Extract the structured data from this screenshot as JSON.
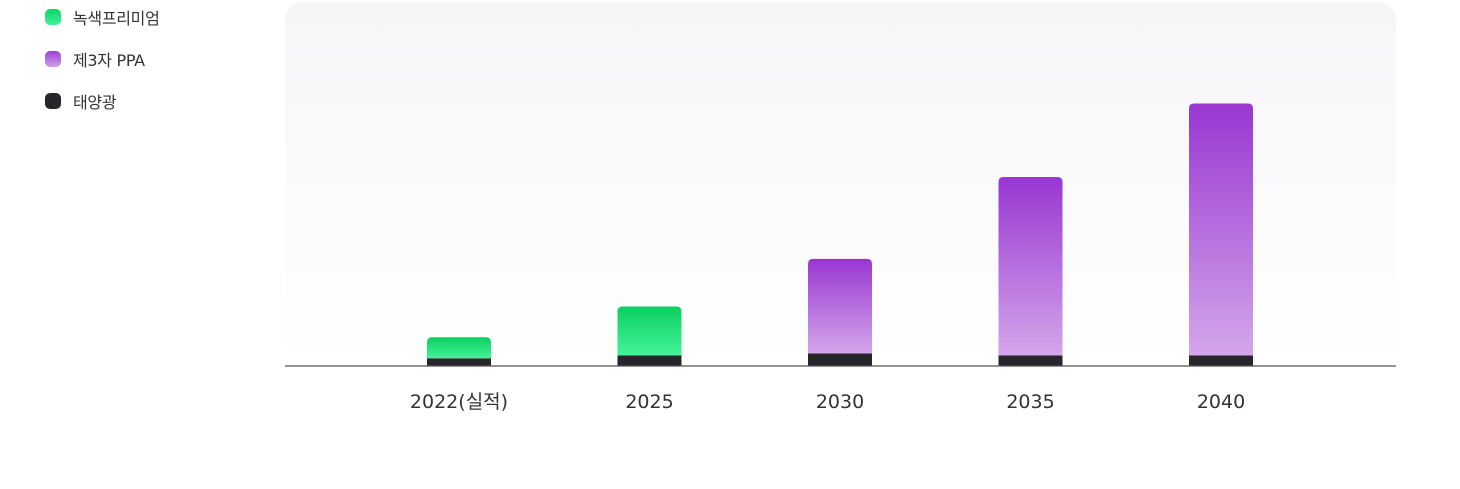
{
  "chart_data": {
    "type": "bar",
    "stacked": true,
    "categories": [
      "2022(실적)",
      "2025",
      "2030",
      "2035",
      "2040"
    ],
    "series": [
      {
        "name": "태양광",
        "values": [
          1.1,
          1.5,
          1.8,
          1.5,
          1.5
        ],
        "color": "#26262b"
      },
      {
        "name": "녹색프리미엄",
        "values": [
          3.0,
          7.0,
          0,
          0,
          0
        ],
        "color": "#1fd16e"
      },
      {
        "name": "제3자 PPA",
        "values": [
          0,
          0,
          13.5,
          25.5,
          36.0
        ],
        "color": "#9b3fd4"
      }
    ],
    "ylim": [
      0,
      50
    ],
    "grid": false,
    "legend": "top-left",
    "title": "",
    "xlabel": "",
    "ylabel": ""
  },
  "legend": {
    "items": [
      {
        "label": "녹색프리미엄",
        "color": "#1fd16e"
      },
      {
        "label": "제3자 PPA",
        "color": "#9b3fd4"
      },
      {
        "label": "태양광",
        "color": "#26262b"
      }
    ]
  }
}
